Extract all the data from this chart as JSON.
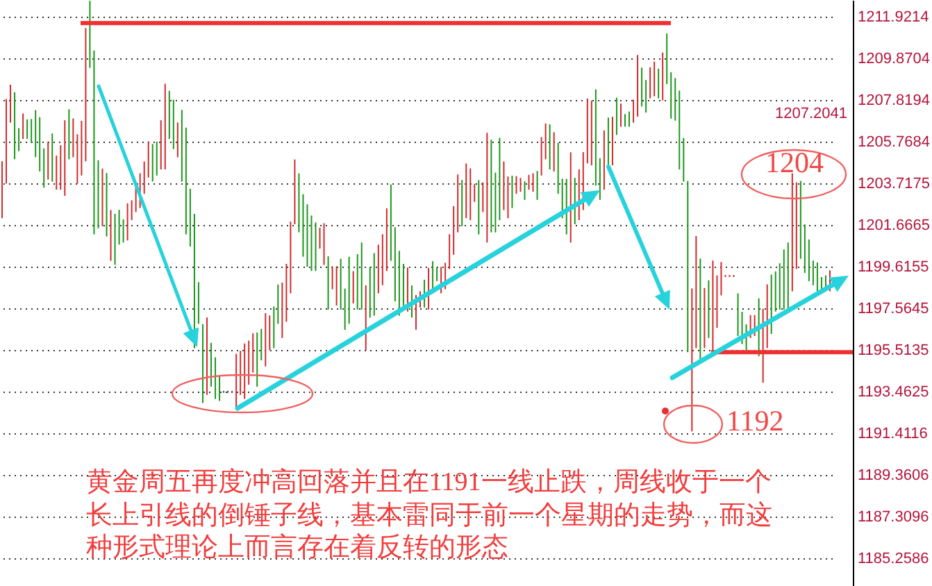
{
  "chart_data": {
    "type": "bar",
    "categories": [
      null,
      null,
      null,
      null,
      null,
      null,
      null,
      null,
      null,
      null,
      null,
      null,
      null,
      null,
      null,
      null,
      null,
      null,
      null,
      null,
      null,
      null,
      null,
      null,
      null,
      null,
      null,
      null,
      null,
      null,
      null,
      null,
      null,
      null,
      null,
      null,
      null,
      null,
      null,
      null,
      null,
      null,
      null,
      null,
      null,
      null,
      null,
      null,
      null,
      null,
      null,
      null,
      null,
      null,
      null,
      null,
      null,
      null,
      null,
      null,
      null,
      null,
      null,
      null,
      null,
      null,
      null,
      null,
      null,
      null,
      null,
      null,
      null,
      null,
      null,
      null,
      null,
      null,
      null,
      null,
      null,
      null,
      null,
      null,
      null,
      null,
      null,
      null,
      null,
      null,
      null,
      null,
      null,
      null,
      null,
      null,
      null,
      null,
      null,
      null,
      null,
      null,
      null,
      null,
      null,
      null,
      null,
      null,
      null,
      null,
      null,
      null,
      null,
      null,
      null,
      null,
      null,
      null,
      null,
      null,
      null,
      null,
      null,
      null,
      null,
      null,
      null,
      null,
      null,
      null,
      null,
      null,
      null,
      null,
      null,
      null,
      null,
      null,
      null,
      null,
      null,
      null,
      null,
      null,
      null,
      null,
      null,
      null,
      null,
      null,
      null,
      null,
      null,
      null,
      null,
      null,
      null,
      null,
      null,
      null,
      null,
      null,
      null,
      null,
      null,
      null,
      null,
      null,
      null,
      null,
      null,
      null,
      null,
      null,
      null,
      null,
      null,
      null,
      null,
      null,
      null,
      null,
      null,
      null,
      null,
      null,
      null,
      null,
      null,
      null,
      null,
      null,
      null,
      null,
      null,
      null,
      null,
      null,
      null
    ],
    "base": [
      1202.0,
      1203.7,
      1206.7,
      1204.9,
      1205.3,
      1205.9,
      1205.9,
      1205.7,
      1205.0,
      1204.3,
      1203.5,
      1203.9,
      1203.8,
      1203.4,
      1203.4,
      1203.1,
      1204.9,
      1205.0,
      1203.7,
      1204.1,
      1204.8,
      1209.4,
      1201.2,
      1201.5,
      1201.6,
      1201.1,
      1199.9,
      1199.7,
      1200.7,
      1200.8,
      1200.9,
      1201.9,
      1202.3,
      1202.5,
      1203.2,
      1204.0,
      1203.8,
      1204.1,
      1204.4,
      1204.4,
      1205.9,
      1205.4,
      1205.0,
      1203.8,
      1201.2,
      1200.6,
      1195.6,
      1196.8,
      1192.9,
      1193.3,
      1193.7,
      1193.1,
      1193.0,
      1193.4,
      1193.4,
      1193.4,
      1192.7,
      1193.3,
      1193.1,
      1193.8,
      1194.4,
      1193.7,
      1195.0,
      1194.7,
      1195.5,
      1195.6,
      1196.8,
      1196.1,
      1196.9,
      1198.3,
      1201.7,
      1201.3,
      1200.1,
      1199.6,
      1199.4,
      1199.4,
      1200.5,
      1199.7,
      1197.5,
      1198.5,
      1197.7,
      1197.5,
      1196.5,
      1196.8,
      1197.8,
      1197.5,
      1197.5,
      1195.5,
      1197.1,
      1197.2,
      1198.3,
      1198.7,
      1199.4,
      1199.9,
      1197.9,
      1197.2,
      1197.7,
      1197.4,
      1197.1,
      1196.5,
      1197.6,
      1197.6,
      1197.5,
      1198.4,
      1198.9,
      1198.3,
      1198.5,
      1199.5,
      1200.2,
      1201.3,
      1201.6,
      1202.0,
      1201.9,
      1202.8,
      1201.2,
      1202.3,
      1200.8,
      1201.3,
      1201.3,
      1201.9,
      1202.4,
      1202.0,
      1202.5,
      1203.2,
      1203.3,
      1202.9,
      1203.4,
      1203.3,
      1202.9,
      1204.1,
      1204.9,
      1204.4,
      1204.3,
      1203.2,
      1202.0,
      1201.2,
      1200.8,
      1201.7,
      1201.9,
      1202.4,
      1204.7,
      1204.6,
      1203.6,
      1202.9,
      1203.4,
      1204.6,
      1204.6,
      1206.1,
      1206.5,
      1206.5,
      1206.5,
      1206.7,
      1207.0,
      1207.5,
      1207.2,
      1207.9,
      1208.0,
      1207.9,
      1207.8,
      1208.6,
      1206.9,
      1206.8,
      1204.4,
      1203.8,
      1195.4,
      1191.5,
      1195.6,
      1195.0,
      1195.6,
      1196.1,
      1195.4,
      1196.6,
      1198.2,
      1199.1,
      1199.1,
      1199.1,
      1196.2,
      1195.8,
      1195.4,
      1196.1,
      1196.2,
      1195.2,
      1193.9,
      1195.6,
      1196.3,
      1197.4,
      1197.5,
      1197.5,
      1197.5,
      1198.4,
      1199.5,
      1200.0,
      1199.3,
      1198.9,
      1198.7,
      1198.4,
      1198.3,
      1198.5,
      1198.4
    ],
    "values": [
      2.8,
      4.17,
      1.87,
      3.3,
      1.13,
      1.25,
      0.96,
      1.18,
      2.32,
      2.67,
      1.93,
      1.87,
      2.37,
      1.68,
      2.19,
      3.72,
      2.46,
      1.91,
      2.43,
      2.69,
      6.56,
      3.3,
      9.05,
      3.35,
      2.84,
      3.12,
      2.5,
      2.51,
      1.71,
      1.14,
      1.83,
      0.98,
      1.37,
      1.71,
      1.59,
      1.78,
      1.85,
      1.67,
      2.42,
      4.22,
      2.37,
      2.43,
      1.71,
      3.53,
      5.26,
      2.85,
      6.61,
      2.05,
      3.88,
      3.81,
      2.16,
      2.05,
      1.25,
      0.1,
      0.1,
      0.1,
      2.62,
      2.17,
      2.73,
      2.17,
      1.93,
      2.67,
      1.55,
      2.62,
      1.71,
      2.05,
      1.93,
      2.73,
      2.85,
      3.53,
      3.19,
      2.9,
      3.08,
      3.08,
      2.73,
      2.39,
      1.03,
      2.05,
      2.62,
      1.13,
      1.93,
      2.5,
      2.03,
      3.3,
      1.59,
      2.73,
      3.3,
      3.19,
      2.5,
      3.08,
      2.39,
      2.51,
      3.08,
      3.76,
      3.65,
      3.19,
      2.05,
      2.17,
      1.59,
      1.71,
      0.8,
      1.37,
      2.05,
      1.48,
      0.68,
      1.3,
      1.3,
      1.71,
      2.39,
      2.85,
      2.28,
      2.69,
      2.55,
      0.89,
      2.67,
      1.46,
      5.4,
      4.56,
      2.94,
      4.05,
      2.39,
      2.05,
      1.59,
      0.87,
      0.68,
      0.91,
      0.73,
      0.91,
      1.42,
      1.89,
      1.76,
      2.22,
      1.93,
      2.51,
      1.94,
      2.73,
      4.44,
      2.28,
      2.5,
      2.85,
      3.19,
      3.19,
      4.74,
      2.05,
      2.92,
      2.35,
      2.39,
      1.83,
      1.14,
      0.62,
      0.75,
      1.13,
      3.03,
      1.91,
      1.6,
      1.53,
      1.71,
      1.46,
      2.35,
      2.49,
      2.28,
      2.1,
      3.88,
      2.15,
      8.43,
      7.04,
      5.52,
      5.01,
      2.96,
      2.84,
      4.51,
      2.58,
      1.64,
      0.1,
      0.1,
      0.1,
      2.1,
      1.59,
      1.37,
      1.13,
      1.03,
      2.85,
      3.64,
      3.14,
      2.92,
      1.98,
      2.28,
      2.96,
      3.3,
      5.81,
      4.26,
      3.83,
      2.39,
      2.05,
      1.21,
      1.42,
      0.8,
      0.68,
      1.03
    ],
    "colors": [
      "#d12b2b",
      "#d12b2b",
      "#d12b2b",
      "#1b981b",
      "#1b981b",
      "#d12b2b",
      "#1b981b",
      "#1b981b",
      "#1b981b",
      "#1b981b",
      "#1b981b",
      "#d12b2b",
      "#1b981b",
      "#d12b2b",
      "#d12b2b",
      "#d12b2b",
      "#1b981b",
      "#d12b2b",
      "#d12b2b",
      "#d12b2b",
      "#d12b2b",
      "#1b981b",
      "#1b981b",
      "#1b981b",
      "#d12b2b",
      "#1b981b",
      "#d12b2b",
      "#1b981b",
      "#1b981b",
      "#1b981b",
      "#d12b2b",
      "#d12b2b",
      "#d12b2b",
      "#d12b2b",
      "#d12b2b",
      "#d12b2b",
      "#1b981b",
      "#1b981b",
      "#d12b2b",
      "#d12b2b",
      "#1b981b",
      "#1b981b",
      "#d12b2b",
      "#1b981b",
      "#1b981b",
      "#1b981b",
      "#1b981b",
      "#1b981b",
      "#1b981b",
      "#d12b2b",
      "#1b981b",
      "#1b981b",
      "#1b981b",
      "#555555",
      "#555555",
      "#555555",
      "#d12b2b",
      "#d12b2b",
      "#d12b2b",
      "#d12b2b",
      "#d12b2b",
      "#1b981b",
      "#1b981b",
      "#d12b2b",
      "#d12b2b",
      "#1b981b",
      "#1b981b",
      "#d12b2b",
      "#d12b2b",
      "#d12b2b",
      "#d12b2b",
      "#1b981b",
      "#1b981b",
      "#1b981b",
      "#1b981b",
      "#1b981b",
      "#d12b2b",
      "#d12b2b",
      "#1b981b",
      "#d12b2b",
      "#d12b2b",
      "#1b981b",
      "#1b981b",
      "#1b981b",
      "#d12b2b",
      "#1b981b",
      "#1b981b",
      "#d12b2b",
      "#1b981b",
      "#1b981b",
      "#d12b2b",
      "#d12b2b",
      "#d12b2b",
      "#1b981b",
      "#1b981b",
      "#1b981b",
      "#1b981b",
      "#d12b2b",
      "#1b981b",
      "#d12b2b",
      "#d12b2b",
      "#1b981b",
      "#d12b2b",
      "#1b981b",
      "#1b981b",
      "#d12b2b",
      "#d12b2b",
      "#d12b2b",
      "#d12b2b",
      "#d12b2b",
      "#1b981b",
      "#d12b2b",
      "#d12b2b",
      "#d12b2b",
      "#1b981b",
      "#d12b2b",
      "#d12b2b",
      "#1b981b",
      "#1b981b",
      "#1b981b",
      "#d12b2b",
      "#d12b2b",
      "#1b981b",
      "#d12b2b",
      "#d12b2b",
      "#1b981b",
      "#d12b2b",
      "#d12b2b",
      "#1b981b",
      "#d12b2b",
      "#d12b2b",
      "#1b981b",
      "#d12b2b",
      "#1b981b",
      "#1b981b",
      "#1b981b",
      "#d12b2b",
      "#1b981b",
      "#d12b2b",
      "#d12b2b",
      "#d12b2b",
      "#d12b2b",
      "#1b981b",
      "#1b981b",
      "#d12b2b",
      "#1b981b",
      "#d12b2b",
      "#1b981b",
      "#d12b2b",
      "#1b981b",
      "#1b981b",
      "#d12b2b",
      "#d12b2b",
      "#1b981b",
      "#1b981b",
      "#d12b2b",
      "#d12b2b",
      "#1b981b",
      "#d12b2b",
      "#1b981b",
      "#1b981b",
      "#1b981b",
      "#1b981b",
      "#1b981b",
      "#1b981b",
      "#d12b2b",
      "#d12b2b",
      "#1b981b",
      "#d12b2b",
      "#1b981b",
      "#d12b2b",
      "#d12b2b",
      "#d12b2b",
      "#d12b2b",
      "#d12b2b",
      "#d12b2b",
      "#1b981b",
      "#1b981b",
      "#1b981b",
      "#d12b2b",
      "#d12b2b",
      "#1b981b",
      "#d12b2b",
      "#d12b2b",
      "#1b981b",
      "#1b981b",
      "#1b981b",
      "#1b981b",
      "#1b981b",
      "#d12b2b",
      "#d12b2b",
      "#1b981b",
      "#1b981b",
      "#1b981b",
      "#1b981b",
      "#1b981b",
      "#1b981b",
      "#1b981b",
      "#d12b2b"
    ],
    "ylim": [
      1183.89,
      1212.74
    ],
    "yticks": [
      1185.2586,
      1187.3096,
      1189.3606,
      1191.4116,
      1193.4625,
      1195.5135,
      1197.5645,
      1199.6155,
      1201.6665,
      1203.7175,
      1205.7684,
      1207.8194,
      1209.8704,
      1211.9214
    ],
    "grid": "y",
    "tick_labels": "y",
    "ref_lines": [
      {
        "axis": "y",
        "value": 1211.6,
        "color": "#f03030"
      },
      {
        "axis": "y",
        "value": 1195.4,
        "color": "#f03030"
      }
    ],
    "annotations": [
      "黄金周五再度冲高回落并且在1191一线止跌，周线收于一个长上引线的倒锤子线，基本雷同于前一个星期的走势，而这种形式理论上而言存在着反转的形态",
      "1204",
      "1192",
      "1207.2041"
    ]
  }
}
